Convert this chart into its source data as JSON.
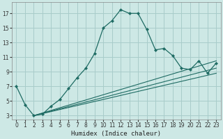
{
  "xlabel": "Humidex (Indice chaleur)",
  "bg_color": "#cde8e5",
  "grid_color": "#a8ccca",
  "line_color": "#1e6b63",
  "xlim": [
    -0.5,
    23.5
  ],
  "ylim": [
    2.5,
    18.5
  ],
  "xticks": [
    0,
    1,
    2,
    3,
    4,
    5,
    6,
    7,
    8,
    9,
    10,
    11,
    12,
    13,
    14,
    15,
    16,
    17,
    18,
    19,
    20,
    21,
    22,
    23
  ],
  "yticks": [
    3,
    5,
    7,
    9,
    11,
    13,
    15,
    17
  ],
  "x_main": [
    0,
    1,
    2,
    3,
    4,
    5,
    6,
    7,
    8,
    9,
    10,
    11,
    12,
    13,
    14,
    15,
    16,
    17,
    18,
    19,
    20,
    21,
    22,
    23
  ],
  "y_main": [
    7,
    4.5,
    3,
    3.2,
    4.3,
    5.2,
    6.7,
    8.2,
    9.5,
    11.5,
    15.0,
    16.0,
    17.5,
    17.0,
    17.0,
    14.8,
    12.0,
    12.2,
    11.2,
    9.5,
    9.3,
    10.5,
    8.8,
    10.2
  ],
  "trend1_x": [
    2,
    23
  ],
  "trend1_y": [
    3.0,
    10.5
  ],
  "trend2_x": [
    2,
    23
  ],
  "trend2_y": [
    3.0,
    9.5
  ],
  "trend3_x": [
    2,
    23
  ],
  "trend3_y": [
    3.0,
    8.8
  ],
  "figsize": [
    3.2,
    2.0
  ],
  "dpi": 100
}
